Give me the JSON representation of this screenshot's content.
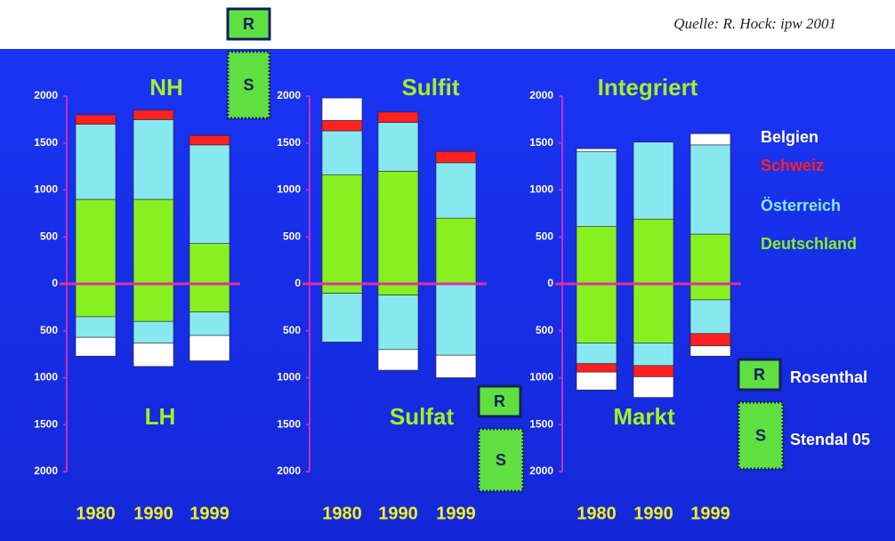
{
  "chart_data": {
    "type": "bar",
    "stacked": true,
    "source": "Quelle: R. Hock: ipw 2001",
    "categories": [
      "1980",
      "1990",
      "1999"
    ],
    "ylim": [
      -2000,
      2000
    ],
    "yticks": [
      2000,
      1500,
      1000,
      500,
      0,
      {
        "value": -500,
        "label": "500"
      },
      {
        "value": -1000,
        "label": "1000"
      },
      {
        "value": -1500,
        "label": "1500"
      },
      {
        "value": -2000,
        "label": "2000"
      }
    ],
    "series": [
      {
        "name": "Belgien",
        "color": "#ffffff"
      },
      {
        "name": "Schweiz",
        "color": "#ff2020"
      },
      {
        "name": "Österreich",
        "color": "#88e8f0"
      },
      {
        "name": "Deutschland",
        "color": "#88f020"
      }
    ],
    "panels": [
      {
        "title": "NH",
        "title_below": "LH",
        "values": [
          [
            0,
            0,
            0
          ],
          [
            100,
            100,
            100
          ],
          [
            800,
            850,
            1050
          ],
          [
            900,
            900,
            430
          ]
        ],
        "values_below": [
          [
            -200,
            -250,
            -270
          ],
          [
            0,
            0,
            0
          ],
          [
            -220,
            -230,
            -250
          ],
          [
            -350,
            -400,
            -300
          ]
        ]
      },
      {
        "title": "Sulfit",
        "title_below": "Sulfat",
        "values": [
          [
            240,
            0,
            0
          ],
          [
            110,
            110,
            120
          ],
          [
            470,
            520,
            590
          ],
          [
            1160,
            1200,
            700
          ]
        ],
        "values_below": [
          [
            0,
            -220,
            -240
          ],
          [
            0,
            0,
            0
          ],
          [
            -520,
            -580,
            -760
          ],
          [
            -100,
            -120,
            0
          ]
        ]
      },
      {
        "title": "Integriert",
        "title_below": "Markt",
        "values": [
          [
            30,
            0,
            120
          ],
          [
            0,
            0,
            0
          ],
          [
            800,
            820,
            950
          ],
          [
            610,
            690,
            530
          ]
        ],
        "values_below": [
          [
            -190,
            -220,
            -110
          ],
          [
            -90,
            -120,
            -130
          ],
          [
            -220,
            -240,
            -360
          ],
          [
            -630,
            -630,
            -170
          ]
        ]
      }
    ],
    "markers": [
      "R",
      "S",
      "R",
      "S",
      "R",
      "S"
    ],
    "marker_legend": [
      "Rosenthal",
      "Stendal 05"
    ]
  }
}
